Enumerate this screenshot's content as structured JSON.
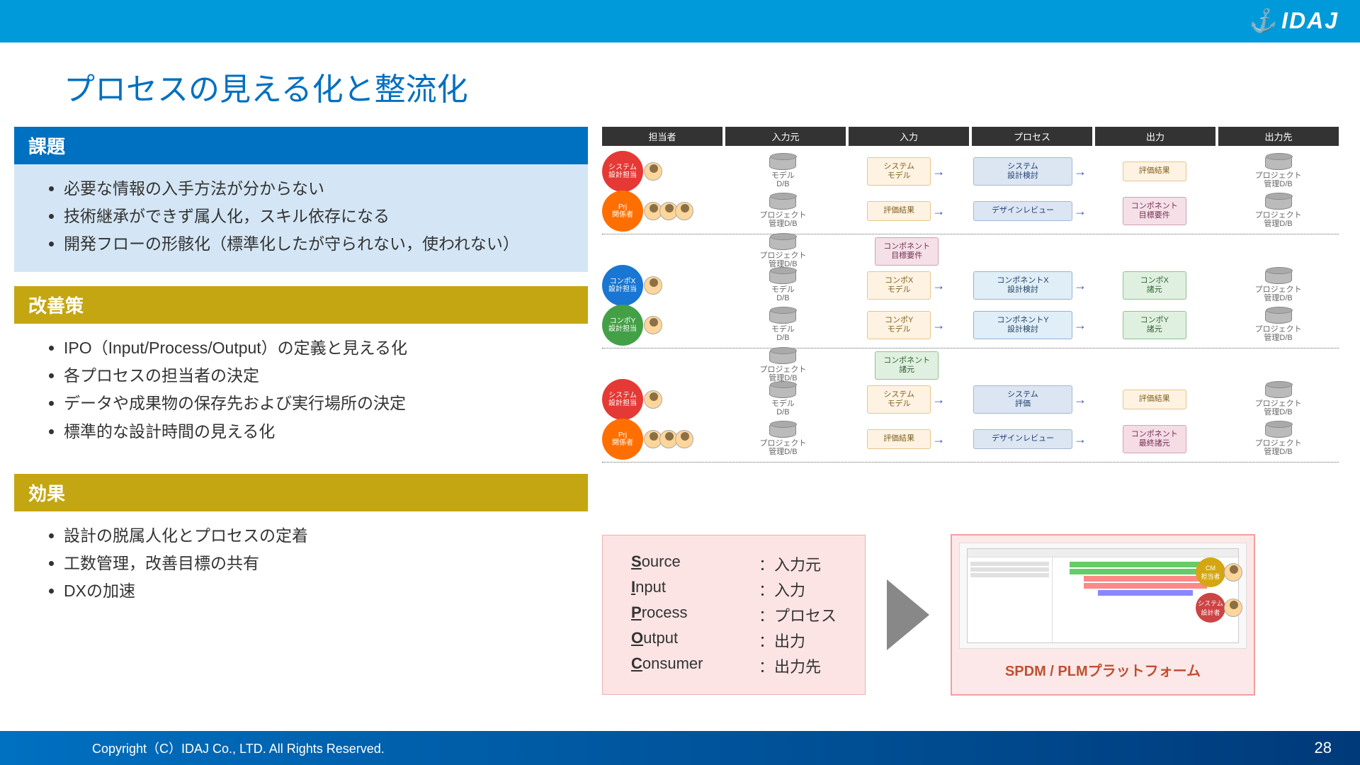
{
  "logo": "IDAJ",
  "title": "プロセスの見える化と整流化",
  "sections": {
    "issues": {
      "header": "課題",
      "items": [
        "必要な情報の入手方法が分からない",
        "技術継承ができず属人化，スキル依存になる",
        "開発フローの形骸化（標準化したが守られない，使われない）"
      ]
    },
    "solutions": {
      "header": "改善策",
      "items": [
        "IPO（Input/Process/Output）の定義と見える化",
        "各プロセスの担当者の決定",
        "データや成果物の保存先および実行場所の決定",
        "標準的な設計時間の見える化"
      ]
    },
    "effects": {
      "header": "効果",
      "items": [
        "設計の脱属人化とプロセスの定着",
        "工数管理，改善目標の共有",
        "DXの加速"
      ]
    }
  },
  "flow": {
    "columns": [
      "担当者",
      "入力元",
      "入力",
      "プロセス",
      "出力",
      "出力先"
    ],
    "roles": {
      "system": "システム\n設計担当",
      "prj": "Prj\n関係者",
      "compx": "コンポX\n設計担当",
      "compy": "コンポY\n設計担当"
    },
    "labels": {
      "model_db": "モデル\nD/B",
      "proj_db": "プロジェクト\n管理D/B",
      "sys_model": "システム\nモデル",
      "sys_review": "システム\n設計検討",
      "eval_result": "評価結果",
      "design_review": "デザインレビュー",
      "comp_target": "コンポネント\n目標要件",
      "compx_model": "コンポX\nモデル",
      "compx_review": "コンポネントX\n設計検討",
      "compx_spec": "コンポX\n諸元",
      "compy_model": "コンポY\nモデル",
      "compy_review": "コンポネントY\n設計検討",
      "compy_spec": "コンポY\n諸元",
      "comp_spec": "コンポネント\n諸元",
      "sys_eval": "システム\n評価",
      "comp_final": "コンポネント\n最終諸元"
    }
  },
  "sipoc": {
    "rows": [
      {
        "en1": "S",
        "en2": "ource",
        "jp": "：入力元"
      },
      {
        "en1": "I",
        "en2": "nput",
        "jp": "：入力"
      },
      {
        "en1": "P",
        "en2": "rocess",
        "jp": "：プロセス"
      },
      {
        "en1": "O",
        "en2": "utput",
        "jp": "：出力"
      },
      {
        "en1": "C",
        "en2": "onsumer",
        "jp": "：出力先"
      }
    ]
  },
  "platform": {
    "label": "SPDM / PLMプラットフォーム",
    "role1": "CM\n担当者",
    "role2": "システム\n設計者"
  },
  "footer": {
    "copyright": "Copyright（C）IDAJ Co., LTD. All Rights Reserved.",
    "page": "28"
  }
}
